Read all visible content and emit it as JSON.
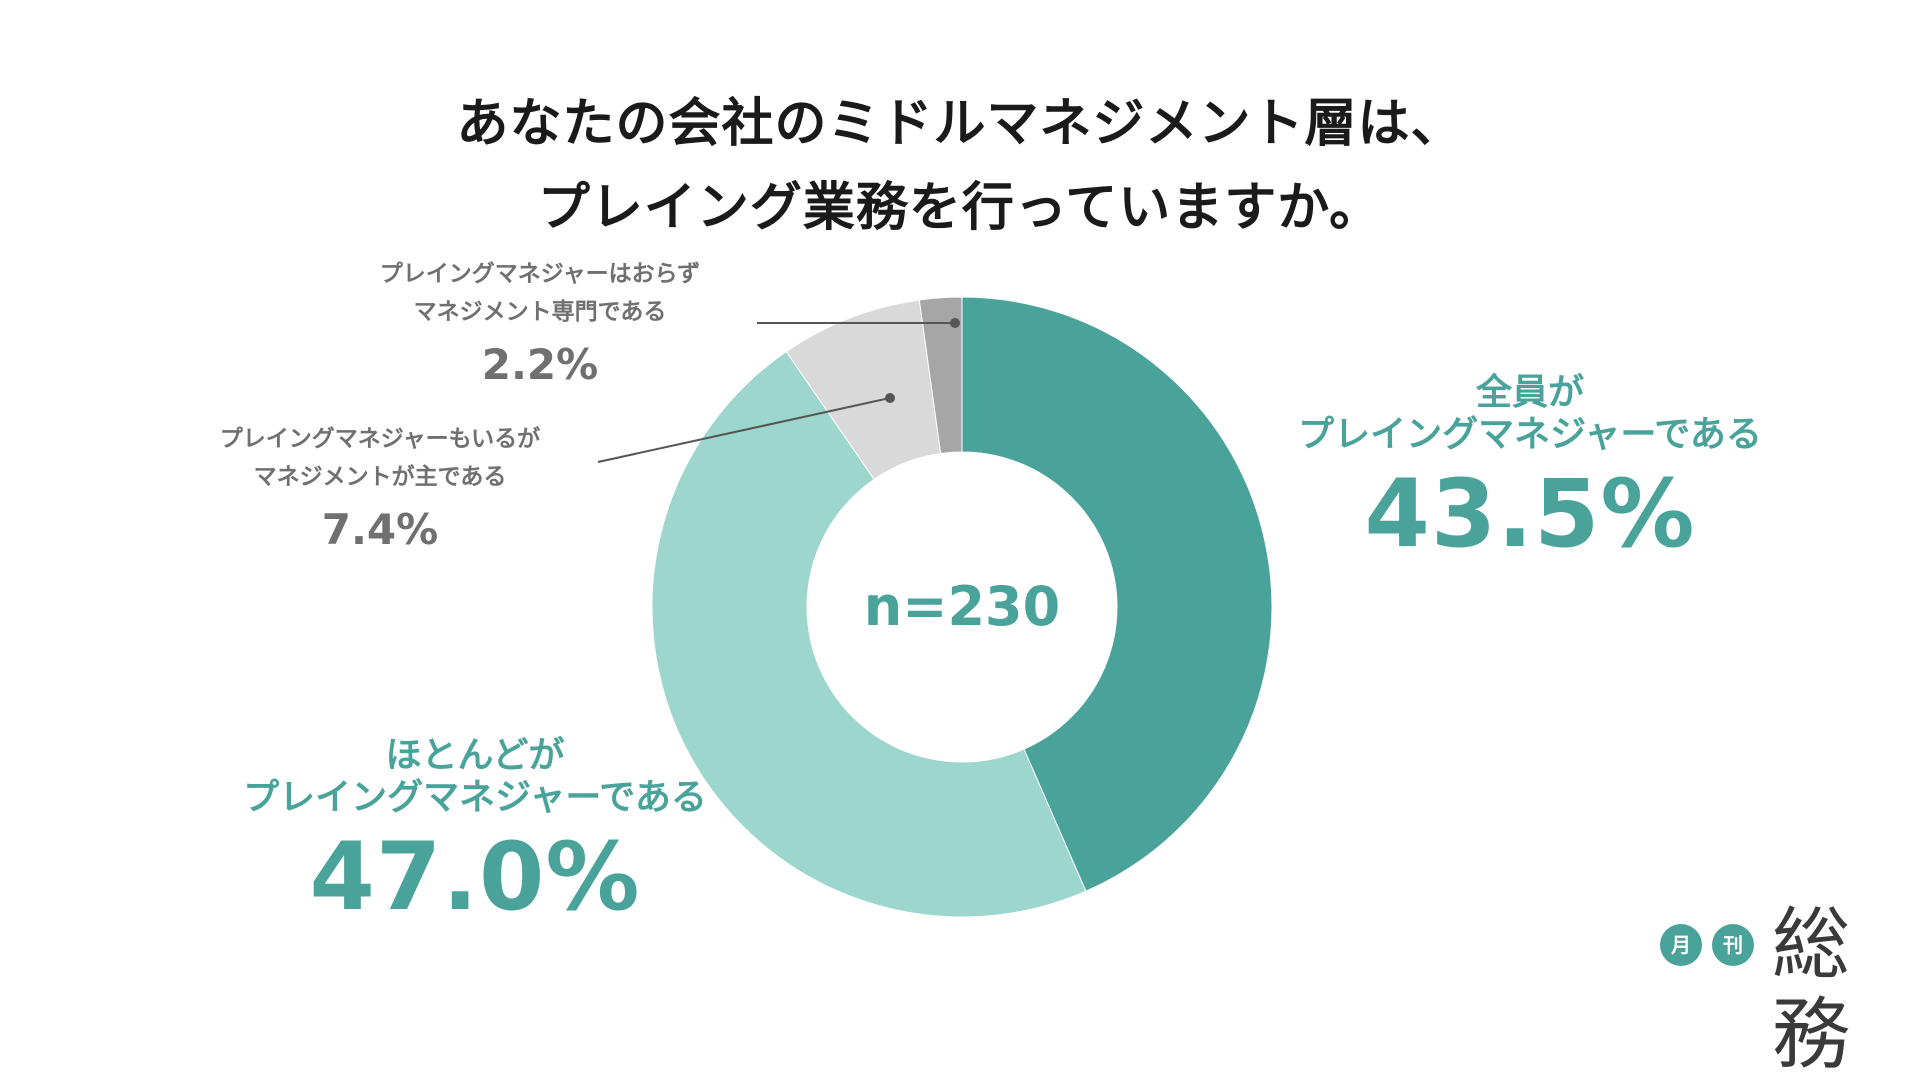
{
  "title_lines": [
    "あなたの会社のミドルマネジメント層は、",
    "プレイング業務を行っていますか。"
  ],
  "center_label": "n=230",
  "logo": {
    "badge1": "月",
    "badge2": "刊",
    "brand": "総務"
  },
  "colors": {
    "full": "#4aa39a",
    "most": "#9dd6cd",
    "some": "#d9d9d9",
    "none": "#a6a6a6",
    "label_teal": "#4aa39a",
    "label_grey": "#707070"
  },
  "chart_data": {
    "type": "pie",
    "donut": true,
    "categories": [
      "全員がプレイングマネジャーである",
      "ほとんどがプレイングマネジャーである",
      "プレイングマネジャーもいるがマネジメントが主である",
      "プレイングマネジャーはおらずマネジメント専門である"
    ],
    "values": [
      43.5,
      47.0,
      7.4,
      2.2
    ],
    "labels": [
      {
        "lines": [
          "全員が",
          "プレイングマネジャーである"
        ],
        "pct": "43.5%"
      },
      {
        "lines": [
          "ほとんどが",
          "プレイングマネジャーである"
        ],
        "pct": "47.0%"
      },
      {
        "lines": [
          "プレイングマネジャーもいるが",
          "マネジメントが主である"
        ],
        "pct": "7.4%"
      },
      {
        "lines": [
          "プレイングマネジャーはおらず",
          "マネジメント専門である"
        ],
        "pct": "2.2%"
      }
    ]
  }
}
